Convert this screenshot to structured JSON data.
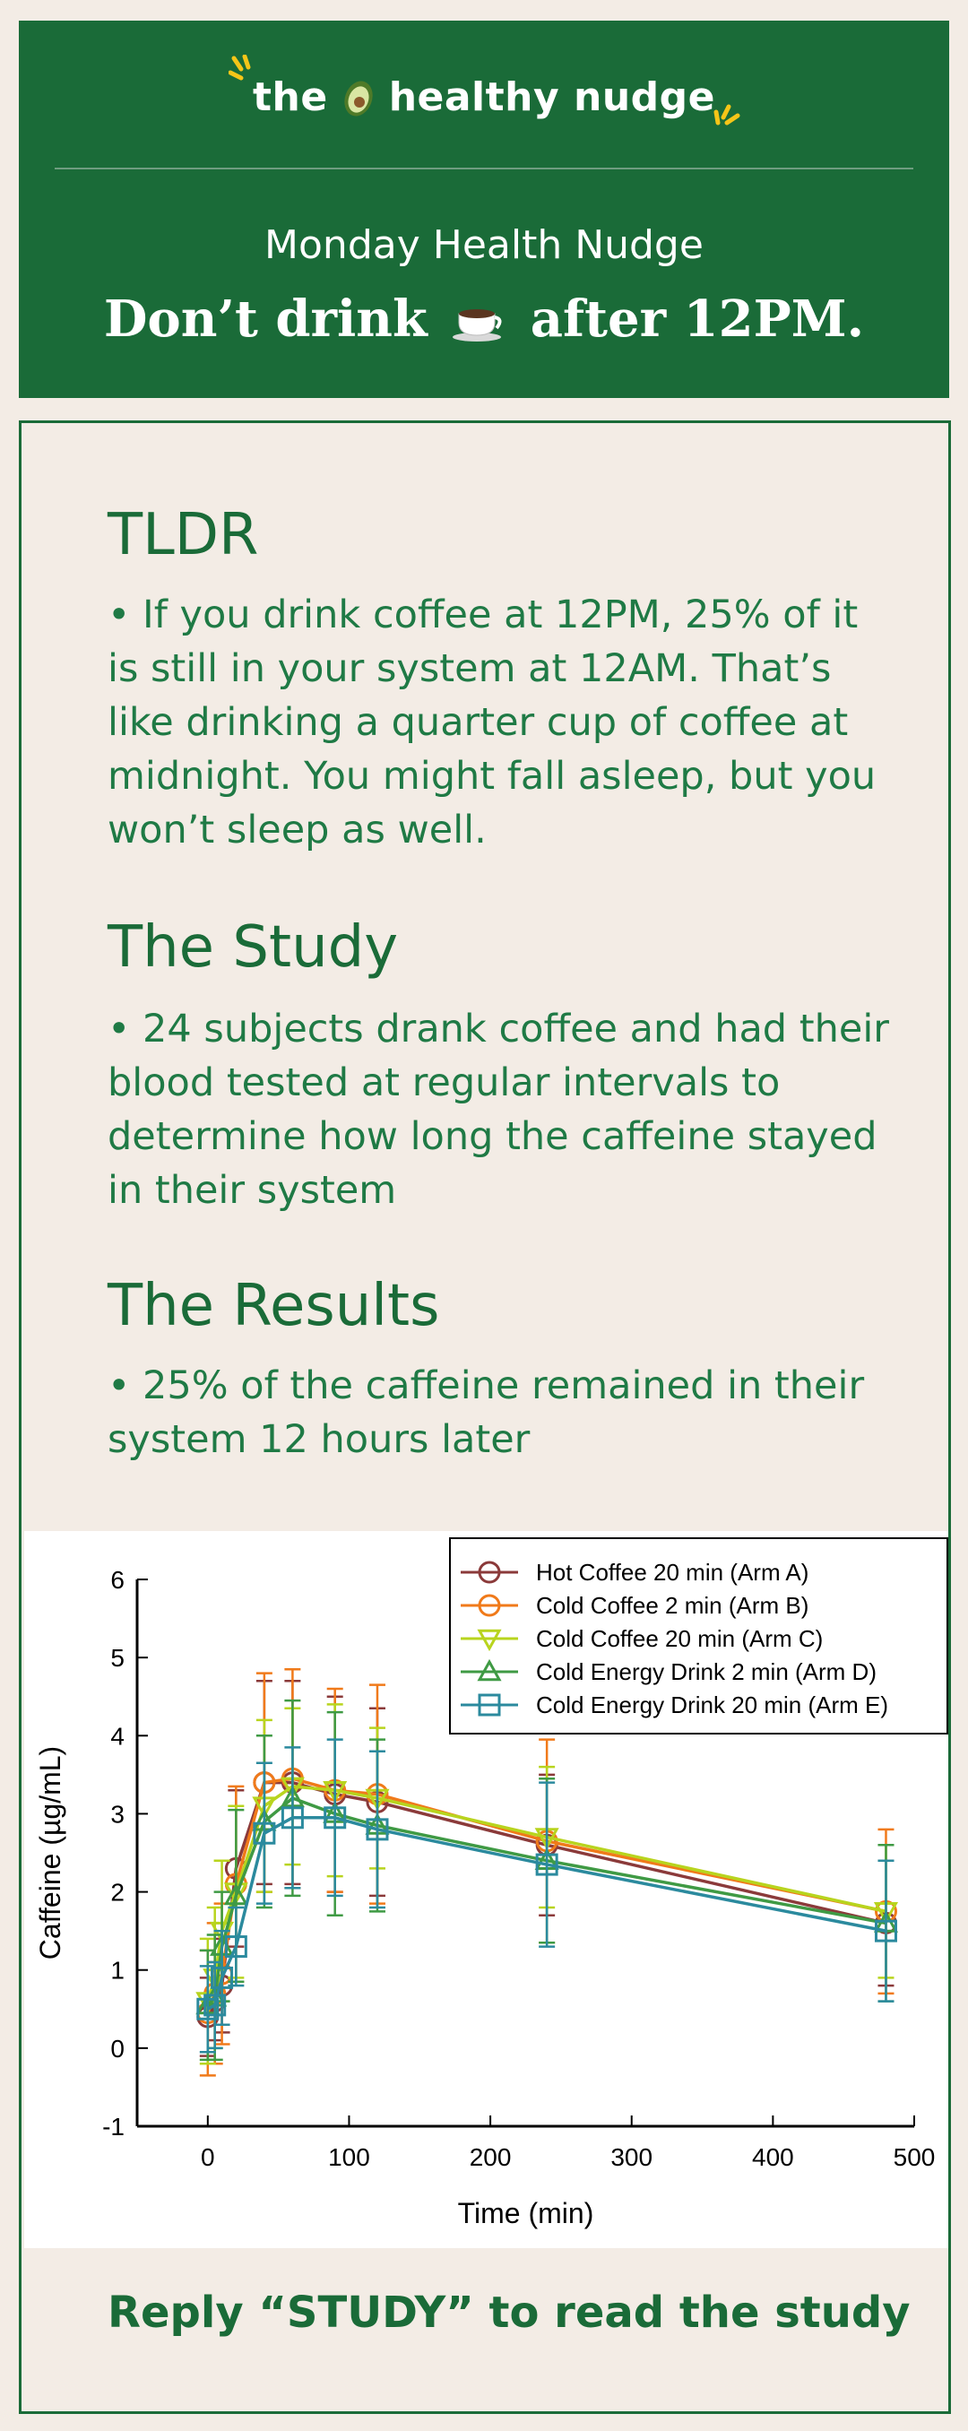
{
  "header": {
    "brand_before": "the",
    "brand_after": "healthy nudge",
    "subtitle": "Monday Health Nudge",
    "headline_before": "Don’t drink",
    "headline_after": "after 12PM."
  },
  "sections": [
    {
      "title": "TLDR",
      "text": "• If you drink coffee at 12PM, 25% of it is still in your system at 12AM. That’s like drinking a quarter cup of coffee at midnight. You might fall asleep, but you won’t sleep as well."
    },
    {
      "title": "The Study",
      "text": "• 24 subjects drank coffee and had their blood tested at regular intervals to determine how long the caffeine stayed in their system"
    },
    {
      "title": "The Results",
      "text": "• 25% of the caffeine remained in their system 12 hours later"
    }
  ],
  "cta": "Reply “STUDY” to read the study",
  "chart_data": {
    "type": "line",
    "xlabel": "Time (min)",
    "ylabel": "Caffeine (µg/mL)",
    "xlim": [
      -50,
      500
    ],
    "ylim": [
      -1,
      6
    ],
    "xticks": [
      0,
      100,
      200,
      300,
      400,
      500
    ],
    "yticks": [
      -1,
      0,
      1,
      2,
      3,
      4,
      5,
      6
    ],
    "legend_position": "top-right",
    "grid": false,
    "x": [
      0,
      5,
      10,
      20,
      40,
      60,
      90,
      120,
      240,
      480
    ],
    "series": [
      {
        "name": "Hot Coffee 20 min (Arm A)",
        "color": "#8b3a3a",
        "marker": "circle",
        "values": [
          0.4,
          0.6,
          0.8,
          2.3,
          3.4,
          3.4,
          3.25,
          3.15,
          2.6,
          1.6
        ],
        "err": [
          0.5,
          0.5,
          0.6,
          1.0,
          1.3,
          1.3,
          1.25,
          1.2,
          0.9,
          0.8
        ]
      },
      {
        "name": "Cold Coffee 2 min (Arm B)",
        "color": "#f07a1a",
        "marker": "circle",
        "values": [
          0.45,
          0.7,
          0.95,
          2.1,
          3.4,
          3.45,
          3.3,
          3.25,
          2.65,
          1.75
        ],
        "err": [
          0.8,
          0.9,
          0.9,
          1.25,
          1.4,
          1.4,
          1.3,
          1.4,
          1.3,
          1.05
        ]
      },
      {
        "name": "Cold Coffee 20 min (Arm C)",
        "color": "#b8d41e",
        "marker": "triangle-down",
        "values": [
          0.6,
          0.9,
          1.5,
          2.0,
          3.1,
          3.35,
          3.3,
          3.2,
          2.7,
          1.75
        ],
        "err": [
          0.8,
          0.9,
          0.9,
          1.1,
          1.1,
          1.0,
          1.1,
          0.9,
          0.9,
          0.85
        ]
      },
      {
        "name": "Cold Energy Drink 2 min (Arm D)",
        "color": "#3f9a44",
        "marker": "triangle-up",
        "values": [
          0.55,
          0.65,
          1.3,
          1.95,
          2.9,
          3.2,
          3.0,
          2.85,
          2.4,
          1.6
        ],
        "err": [
          0.7,
          0.8,
          0.7,
          1.1,
          1.1,
          1.25,
          1.3,
          1.1,
          1.05,
          1.0
        ]
      },
      {
        "name": "Cold Energy Drink 20 min (Arm E)",
        "color": "#2b8a9e",
        "marker": "square",
        "values": [
          0.5,
          0.55,
          0.9,
          1.3,
          2.75,
          2.95,
          2.95,
          2.8,
          2.35,
          1.5
        ],
        "err": [
          0.55,
          0.55,
          0.6,
          0.5,
          0.9,
          0.9,
          1.0,
          1.0,
          1.05,
          0.9
        ]
      }
    ]
  }
}
